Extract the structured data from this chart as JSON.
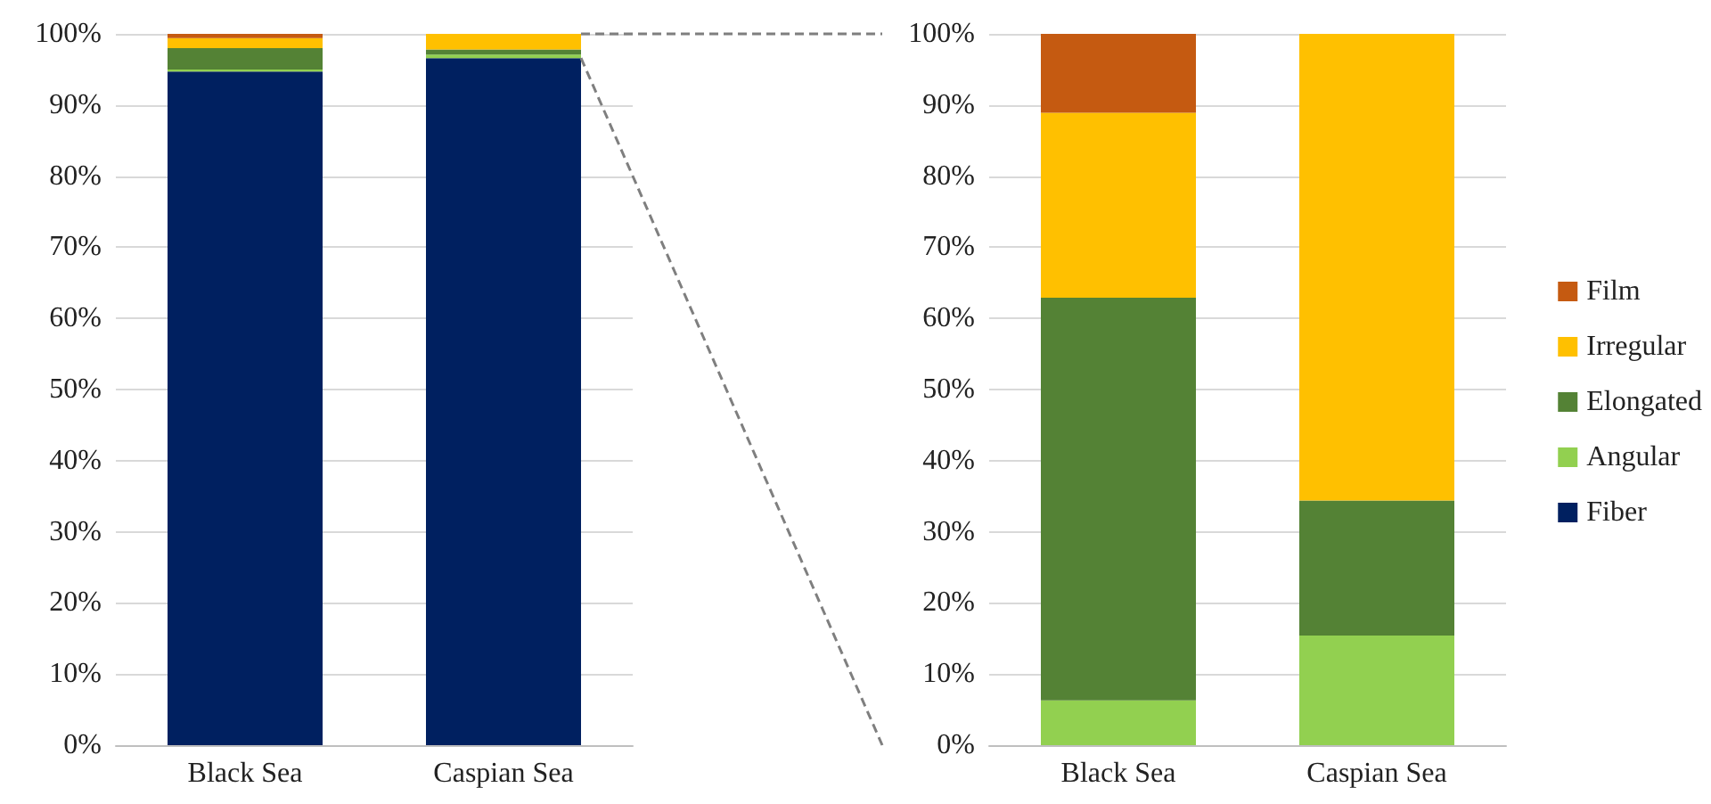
{
  "chart_data": [
    {
      "type": "bar",
      "stacked": true,
      "categories": [
        "Black Sea",
        "Caspian Sea"
      ],
      "series": [
        {
          "name": "Fiber",
          "color": "#002060",
          "values": [
            94.7,
            96.6
          ]
        },
        {
          "name": "Angular",
          "color": "#92d050",
          "values": [
            0.3,
            0.5
          ]
        },
        {
          "name": "Elongated",
          "color": "#548235",
          "values": [
            3.0,
            0.7
          ]
        },
        {
          "name": "Irregular",
          "color": "#ffc000",
          "values": [
            1.4,
            2.2
          ]
        },
        {
          "name": "Film",
          "color": "#c55a11",
          "values": [
            0.6,
            null
          ]
        }
      ],
      "ylim": [
        0,
        100
      ],
      "yticks": [
        {
          "value": 0,
          "label": "0%"
        },
        {
          "value": 10,
          "label": "10%"
        },
        {
          "value": 20,
          "label": "20%"
        },
        {
          "value": 30,
          "label": "30%"
        },
        {
          "value": 40,
          "label": "40%"
        },
        {
          "value": 50,
          "label": "50%"
        },
        {
          "value": 60,
          "label": "60%"
        },
        {
          "value": 70,
          "label": "70%"
        },
        {
          "value": 80,
          "label": "80%"
        },
        {
          "value": 90,
          "label": "90%"
        },
        {
          "value": 100,
          "label": "100%"
        }
      ],
      "grid": "y",
      "legend": "right"
    },
    {
      "type": "bar",
      "stacked": true,
      "categories": [
        "Black Sea",
        "Caspian Sea"
      ],
      "series": [
        {
          "color": "#92d050",
          "values": [
            6.3,
            15.4
          ]
        },
        {
          "color": "#548235",
          "values": [
            56.6,
            19.0
          ]
        },
        {
          "color": "#ffc000",
          "values": [
            26.0,
            65.6
          ]
        },
        {
          "color": "#c55a11",
          "values": [
            11.1,
            null
          ]
        }
      ],
      "ylim": [
        0,
        100
      ],
      "yticks": [
        {
          "value": 0,
          "label": "0%"
        },
        {
          "value": 10,
          "label": "10%"
        },
        {
          "value": 20,
          "label": "20%"
        },
        {
          "value": 30,
          "label": "30%"
        },
        {
          "value": 40,
          "label": "40%"
        },
        {
          "value": 50,
          "label": "50%"
        },
        {
          "value": 60,
          "label": "60%"
        },
        {
          "value": 70,
          "label": "70%"
        },
        {
          "value": 80,
          "label": "80%"
        },
        {
          "value": 90,
          "label": "90%"
        },
        {
          "value": 100,
          "label": "100%"
        }
      ],
      "grid": "y",
      "legend": false
    }
  ]
}
